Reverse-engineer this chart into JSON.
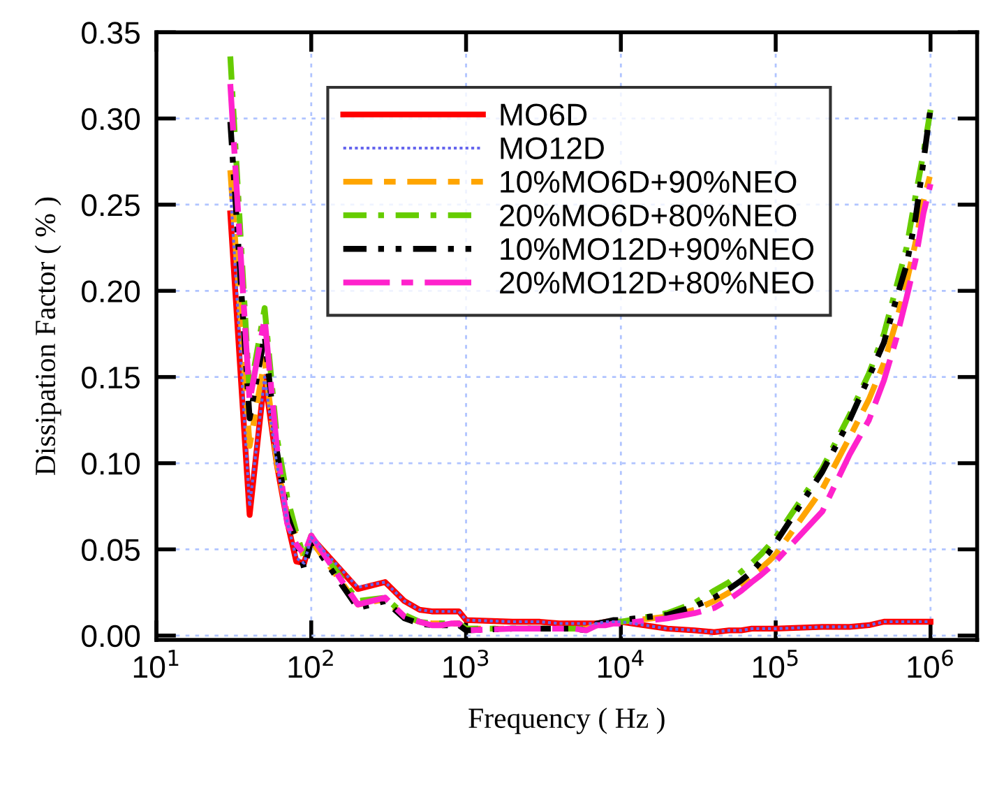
{
  "chart_data": {
    "type": "line",
    "xlabel": "Frequency ( Hz )",
    "ylabel": "Dissipation Factor ( % )",
    "log": "x",
    "grid": true,
    "legend": "top",
    "x": [
      30,
      40,
      50,
      60,
      70,
      80,
      90,
      100,
      200,
      300,
      400,
      500,
      600,
      700,
      800,
      900,
      1000,
      2000,
      3000,
      4000,
      5000,
      6000,
      7000,
      8000,
      9000,
      10000,
      20000,
      30000,
      40000,
      50000,
      60000,
      70000,
      80000,
      90000,
      100000,
      200000,
      300000,
      400000,
      500000,
      600000,
      700000,
      800000,
      900000,
      1000000
    ],
    "xlim": [
      10,
      2000000
    ],
    "xticks": [
      {
        "value": 10,
        "label": "10$^{1}$"
      },
      {
        "value": 100,
        "label": "10$^{2}$"
      },
      {
        "value": 1000,
        "label": "10$^{3}$"
      },
      {
        "value": 10000,
        "label": "10$^{4}$"
      },
      {
        "value": 100000,
        "label": "10$^{5}$"
      },
      {
        "value": 1000000,
        "label": "10$^{6}$"
      }
    ],
    "ylim": [
      -0.0025,
      0.35
    ],
    "yticks": [
      {
        "value": 0,
        "label": "0.00"
      },
      {
        "value": 0.05,
        "label": "0.05"
      },
      {
        "value": 0.1,
        "label": "0.10"
      },
      {
        "value": 0.15,
        "label": "0.15"
      },
      {
        "value": 0.2,
        "label": "0.20"
      },
      {
        "value": 0.25,
        "label": "0.25"
      },
      {
        "value": 0.3,
        "label": "0.30"
      },
      {
        "value": 0.35,
        "label": "0.35"
      }
    ],
    "series": [
      {
        "name": "MO6D",
        "color": "#ff0000",
        "line_style": "solid",
        "values": [
          0.245,
          0.07,
          0.15,
          0.099,
          0.066,
          0.043,
          0.042,
          0.057,
          0.027,
          0.031,
          0.02,
          0.015,
          0.014,
          0.014,
          0.014,
          0.014,
          0.009,
          0.008,
          0.008,
          0.007,
          0.007,
          0.007,
          0.007,
          0.008,
          0.008,
          0.008,
          0.004,
          0.003,
          0.002,
          0.003,
          0.003,
          0.004,
          0.004,
          0.004,
          0.004,
          0.005,
          0.005,
          0.006,
          0.008,
          0.008,
          0.008,
          0.008,
          0.008,
          0.008
        ]
      },
      {
        "name": "MO12D",
        "color": "#6666ee",
        "line_style": "dotted",
        "values": [
          0.26,
          0.075,
          0.15,
          0.099,
          0.066,
          0.045,
          0.042,
          0.057,
          0.028,
          0.031,
          0.02,
          0.015,
          0.014,
          0.014,
          0.014,
          0.014,
          0.009,
          0.008,
          0.008,
          0.007,
          0.007,
          0.007,
          0.007,
          0.008,
          0.008,
          0.008,
          0.004,
          0.003,
          0.002,
          0.003,
          0.003,
          0.004,
          0.004,
          0.004,
          0.004,
          0.005,
          0.005,
          0.006,
          0.008,
          0.008,
          0.008,
          0.008,
          0.008,
          0.008
        ]
      },
      {
        "name": "10%MO6D+90%NEO",
        "color": "#ffa500",
        "line_style": "dashed",
        "values": [
          0.27,
          0.11,
          0.16,
          0.1,
          0.07,
          0.058,
          0.045,
          0.055,
          0.018,
          0.021,
          0.011,
          0.008,
          0.007,
          0.007,
          0.007,
          0.007,
          0.004,
          0.004,
          0.004,
          0.004,
          0.004,
          0.004,
          0.006,
          0.007,
          0.008,
          0.008,
          0.011,
          0.015,
          0.02,
          0.025,
          0.03,
          0.035,
          0.039,
          0.043,
          0.047,
          0.085,
          0.115,
          0.137,
          0.158,
          0.182,
          0.205,
          0.228,
          0.252,
          0.268
        ]
      },
      {
        "name": "20%MO6D+80%NEO",
        "color": "#66cc00",
        "line_style": "dashdot",
        "values": [
          0.336,
          0.14,
          0.19,
          0.115,
          0.08,
          0.06,
          0.045,
          0.058,
          0.02,
          0.022,
          0.012,
          0.008,
          0.007,
          0.007,
          0.007,
          0.007,
          0.004,
          0.004,
          0.004,
          0.004,
          0.004,
          0.004,
          0.006,
          0.007,
          0.008,
          0.008,
          0.013,
          0.019,
          0.026,
          0.031,
          0.037,
          0.042,
          0.047,
          0.052,
          0.057,
          0.097,
          0.128,
          0.152,
          0.175,
          0.202,
          0.225,
          0.255,
          0.28,
          0.305
        ]
      },
      {
        "name": "10%MO12D+90%NEO",
        "color": "#000000",
        "line_style": "dashdotdot",
        "values": [
          0.298,
          0.126,
          0.174,
          0.107,
          0.07,
          0.055,
          0.039,
          0.055,
          0.016,
          0.02,
          0.01,
          0.007,
          0.006,
          0.006,
          0.006,
          0.006,
          0.003,
          0.004,
          0.004,
          0.004,
          0.004,
          0.003,
          0.007,
          0.008,
          0.009,
          0.009,
          0.012,
          0.017,
          0.022,
          0.027,
          0.032,
          0.037,
          0.043,
          0.048,
          0.054,
          0.095,
          0.125,
          0.15,
          0.17,
          0.195,
          0.215,
          0.242,
          0.275,
          0.306
        ]
      },
      {
        "name": "20%MO12D+80%NEO",
        "color": "#ff22cc",
        "line_style": "longdash",
        "values": [
          0.32,
          0.136,
          0.184,
          0.109,
          0.065,
          0.053,
          0.047,
          0.058,
          0.018,
          0.022,
          0.011,
          0.008,
          0.006,
          0.006,
          0.007,
          0.007,
          0.003,
          0.004,
          0.004,
          0.004,
          0.004,
          0.003,
          0.006,
          0.006,
          0.007,
          0.007,
          0.01,
          0.013,
          0.016,
          0.021,
          0.026,
          0.031,
          0.035,
          0.039,
          0.043,
          0.072,
          0.105,
          0.125,
          0.148,
          0.172,
          0.196,
          0.218,
          0.245,
          0.262
        ]
      }
    ]
  }
}
